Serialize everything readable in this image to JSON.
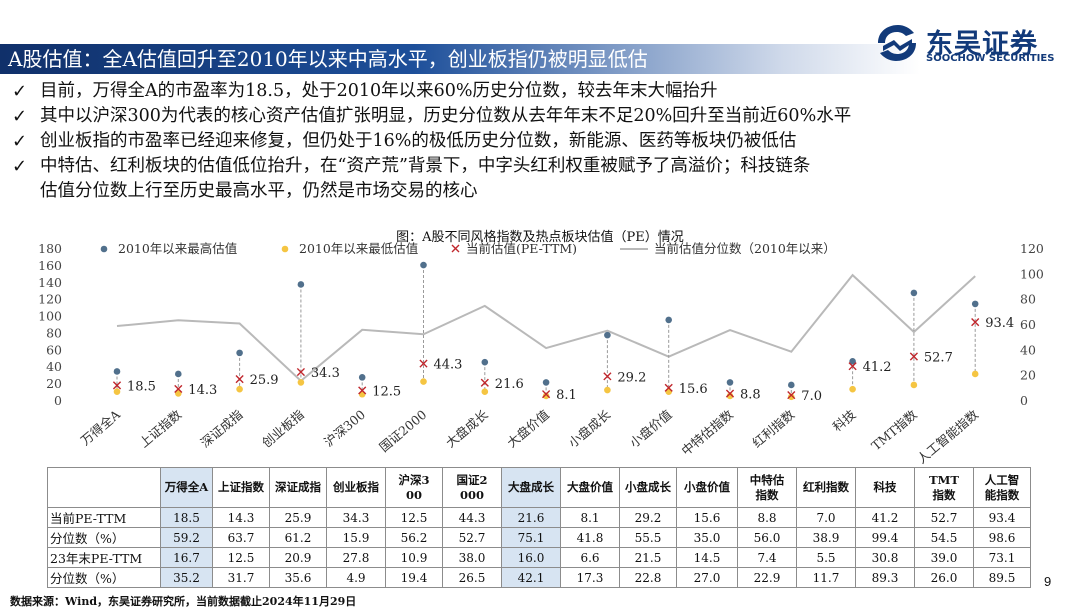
{
  "header": {
    "title": "A股估值：全A估值回升至2010年以来中高水平，创业板指仍被明显低估",
    "logo_cn": "东吴证券",
    "logo_en": "SOOCHOW SECURITIES"
  },
  "bullets": [
    {
      "lines": [
        "目前，万得全A的市盈率为18.5，处于2010年以来60%历史分位数，较去年末大幅抬升"
      ]
    },
    {
      "lines": [
        "其中以沪深300为代表的核心资产估值扩张明显，历史分位数从去年年末不足20%回升至当前近60%水平"
      ]
    },
    {
      "lines": [
        "创业板指的市盈率已经迎来修复，但仍处于16%的极低历史分位数，新能源、医药等板块仍被低估"
      ]
    },
    {
      "lines": [
        "中特估、红利板块的估值低位抬升，在“资产荒”背景下，中字头红利权重被赋予了高溢价；科技链条",
        "估值分位数上行至历史最高水平，仍然是市场交易的核心"
      ]
    }
  ],
  "chart_title": "图：A股不同风格指数及热点板块估值（PE）情况",
  "chart_data": {
    "type": "scatter",
    "title": "图：A股不同风格指数及热点板块估值（PE）情况",
    "categories": [
      "万得全A",
      "上证指数",
      "深证成指",
      "创业板指",
      "沪深300",
      "国证2000",
      "大盘成长",
      "大盘价值",
      "小盘成长",
      "小盘价值",
      "中特估指数",
      "红利指数",
      "科技",
      "TMT指数",
      "人工智能指数"
    ],
    "y_left": {
      "min": 0,
      "max": 180,
      "ticks": [
        0,
        20,
        40,
        60,
        80,
        100,
        120,
        140,
        160,
        180
      ]
    },
    "y_right": {
      "min": 0,
      "max": 120,
      "ticks": [
        0,
        20,
        40,
        60,
        80,
        100,
        120
      ]
    },
    "series": [
      {
        "name": "2010年以来最高估值",
        "marker": "dot",
        "color": "#51708c",
        "axis": "left",
        "values": [
          35,
          32,
          57,
          138,
          28,
          161,
          46,
          22,
          78,
          96,
          22,
          19,
          47,
          128,
          115
        ]
      },
      {
        "name": "2010年以来最低估值",
        "marker": "dot",
        "color": "#f5c542",
        "axis": "left",
        "values": [
          11,
          9,
          14,
          22,
          8,
          23,
          11,
          6,
          13,
          11,
          6,
          5,
          14,
          19,
          32
        ]
      },
      {
        "name": "当前估值(PE-TTM)",
        "marker": "x",
        "color": "#c0272d",
        "axis": "left",
        "values": [
          18.5,
          14.3,
          25.9,
          34.3,
          12.5,
          44.3,
          21.6,
          8.1,
          29.2,
          15.6,
          8.8,
          7.0,
          41.2,
          52.7,
          93.4
        ]
      },
      {
        "name": "当前估值分位数（2010年以来）",
        "marker": "line",
        "color": "#b9b9b9",
        "axis": "right",
        "values": [
          59.2,
          63.7,
          61.2,
          15.9,
          56.2,
          52.7,
          75.1,
          41.8,
          55.5,
          35.0,
          56.0,
          38.9,
          99.4,
          54.5,
          98.6
        ]
      }
    ],
    "labels": [
      "18.5",
      "14.3",
      "25.9",
      "34.3",
      "12.5",
      "44.3",
      "21.6",
      "8.1",
      "29.2",
      "15.6",
      "8.8",
      "7.0",
      "41.2",
      "52.7",
      "93.4"
    ]
  },
  "table": {
    "columns": [
      "万得全A",
      "上证指数",
      "深证成指",
      "创业板指",
      "沪深300",
      "国证2000",
      "大盘成长",
      "大盘价值",
      "小盘成长",
      "小盘价值",
      "中特估指数",
      "红利指数",
      "科技",
      "TMT指数",
      "人工智能指数"
    ],
    "rows": [
      {
        "label": "当前PE-TTM",
        "values": [
          "18.5",
          "14.3",
          "25.9",
          "34.3",
          "12.5",
          "44.3",
          "21.6",
          "8.1",
          "29.2",
          "15.6",
          "8.8",
          "7.0",
          "41.2",
          "52.7",
          "93.4"
        ]
      },
      {
        "label": "分位数（%）",
        "values": [
          "59.2",
          "63.7",
          "61.2",
          "15.9",
          "56.2",
          "52.7",
          "75.1",
          "41.8",
          "55.5",
          "35.0",
          "56.0",
          "38.9",
          "99.4",
          "54.5",
          "98.6"
        ]
      },
      {
        "label": "23年末PE-TTM",
        "values": [
          "16.7",
          "12.5",
          "20.9",
          "27.8",
          "10.9",
          "38.0",
          "16.0",
          "6.6",
          "21.5",
          "14.5",
          "7.4",
          "5.5",
          "30.8",
          "39.0",
          "73.1"
        ]
      },
      {
        "label": "分位数（%）",
        "values": [
          "35.2",
          "31.7",
          "35.6",
          "4.9",
          "19.4",
          "26.5",
          "42.1",
          "17.3",
          "22.8",
          "27.0",
          "22.9",
          "11.7",
          "89.3",
          "26.0",
          "89.5"
        ]
      }
    ]
  },
  "footer": {
    "source": "数据来源：Wind，东吴证券研究所，当前数据截止2024年11月29日",
    "page": "9"
  }
}
